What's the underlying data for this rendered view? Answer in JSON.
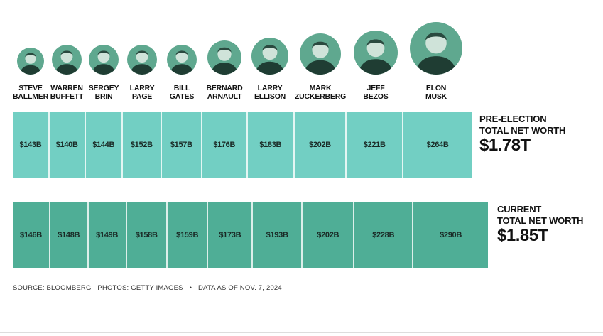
{
  "chart_data": {
    "type": "bar",
    "subtype": "stacked-horizontal-proportional",
    "categories": [
      "STEVE BALLMER",
      "WARREN BUFFETT",
      "SERGEY BRIN",
      "LARRY PAGE",
      "BILL GATES",
      "BERNARD ARNAULT",
      "LARRY ELLISON",
      "MARK ZUCKERBERG",
      "JEFF BEZOS",
      "ELON MUSK"
    ],
    "name_lines": [
      [
        "STEVE",
        "BALLMER"
      ],
      [
        "WARREN",
        "BUFFETT"
      ],
      [
        "SERGEY",
        "BRIN"
      ],
      [
        "LARRY",
        "PAGE"
      ],
      [
        "BILL",
        "GATES"
      ],
      [
        "BERNARD",
        "ARNAULT"
      ],
      [
        "LARRY",
        "ELLISON"
      ],
      [
        "MARK",
        "ZUCKERBERG"
      ],
      [
        "JEFF",
        "BEZOS"
      ],
      [
        "ELON",
        "MUSK"
      ]
    ],
    "unit": "$B",
    "series": [
      {
        "name": "Pre-election",
        "values": [
          143,
          140,
          144,
          152,
          157,
          176,
          183,
          202,
          221,
          264
        ],
        "labels": [
          "$143B",
          "$140B",
          "$144B",
          "$152B",
          "$157B",
          "$176B",
          "$183B",
          "$202B",
          "$221B",
          "$264B"
        ],
        "total_label": [
          "PRE-ELECTION",
          "TOTAL NET WORTH"
        ],
        "total_value": "$1.78T",
        "color": "#72cfc3"
      },
      {
        "name": "Current",
        "values": [
          146,
          148,
          149,
          158,
          159,
          173,
          193,
          202,
          228,
          290
        ],
        "labels": [
          "$146B",
          "$148B",
          "$149B",
          "$158B",
          "$159B",
          "$173B",
          "$193B",
          "$202B",
          "$228B",
          "$290B"
        ],
        "total_label": [
          "CURRENT",
          "TOTAL NET WORTH"
        ],
        "total_value": "$1.85T",
        "color": "#4fae96"
      }
    ]
  },
  "footer": {
    "source": "SOURCE:  BLOOMBERG",
    "photos": "PHOTOS: GETTY IMAGES",
    "sep": "•",
    "date": "DATA AS OF NOV. 7, 2024"
  }
}
